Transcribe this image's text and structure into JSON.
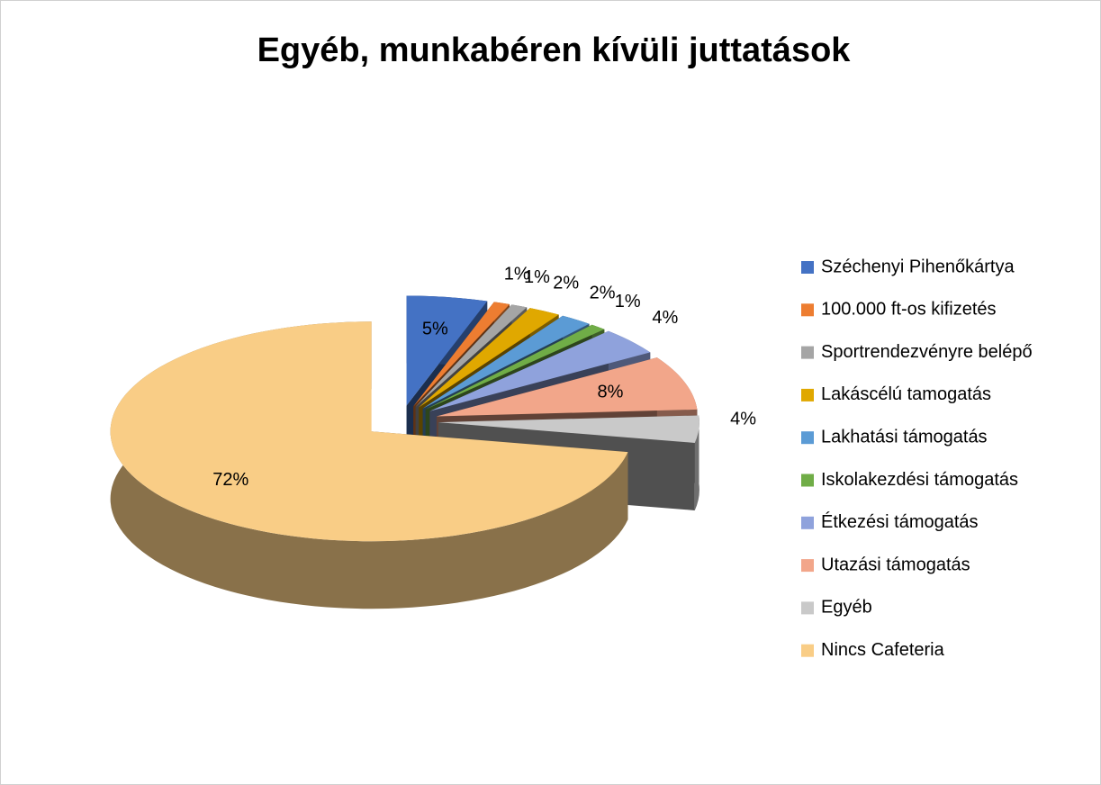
{
  "chart_data": {
    "type": "pie",
    "title": "Egyéb, munkabéren kívüli juttatások",
    "categories": [
      "Széchenyi Pihenőkártya",
      "100.000 ft-os kifizetés",
      "Sportrendezvényre belépő",
      "Lakáscélú tamogatás",
      "Lakhatási támogatás",
      "Iskolakezdési támogatás",
      "Étkezési támogatás",
      "Utazási támogatás",
      "Egyéb",
      "Nincs Cafeteria"
    ],
    "values": [
      5,
      1,
      1,
      2,
      2,
      1,
      4,
      8,
      4,
      72
    ],
    "value_labels": [
      "5%",
      "1%",
      "1%",
      "2%",
      "2%",
      "1%",
      "4%",
      "8%",
      "4%",
      "72%"
    ],
    "colors": [
      "#4472c4",
      "#ed7d31",
      "#a5a5a5",
      "#e0a800",
      "#5b9bd5",
      "#70ad47",
      "#8fa2dc",
      "#f2a68a",
      "#c9c9c9",
      "#f9cd86"
    ],
    "legend": "right"
  }
}
